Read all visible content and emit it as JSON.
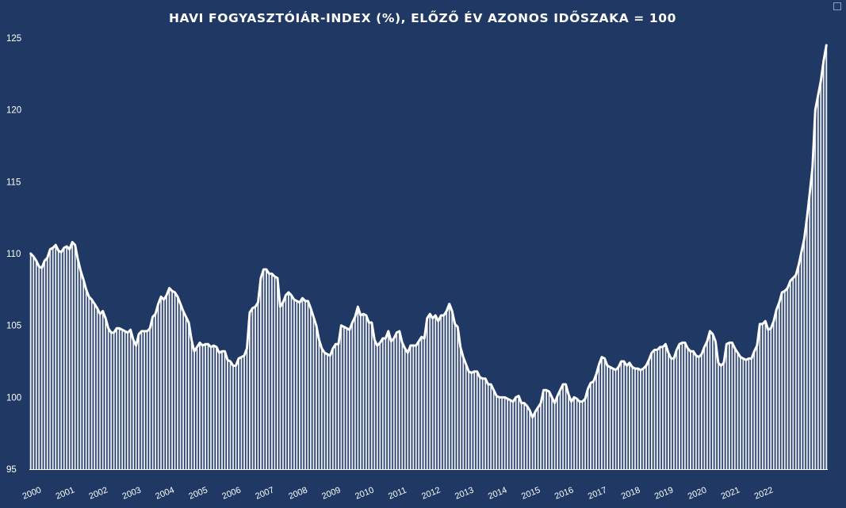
{
  "chart_data": {
    "type": "bar",
    "overlay": "line",
    "title": "HAVI FOGYASZTÓIÁR-INDEX  (%), ELŐZŐ ÉV AZONOS IDŐSZAKA = 100",
    "xlabel": "",
    "ylabel": "",
    "ylim": [
      95,
      125
    ],
    "yticks": [
      "95",
      "100",
      "105",
      "110",
      "115",
      "120",
      "125"
    ],
    "xtick_labels": [
      "2000",
      "2001",
      "2002",
      "2003",
      "2004",
      "2005",
      "2006",
      "2007",
      "2008",
      "2009",
      "2010",
      "2011",
      "2012",
      "2013",
      "2014",
      "2015",
      "2016",
      "2017",
      "2018",
      "2019",
      "2020",
      "2021",
      "2022"
    ],
    "x_start": "2000-01",
    "x_end": "2022-12",
    "grid": false,
    "legend": "none",
    "colors": {
      "background": "#203864",
      "series": "#ffffff",
      "text": "#ffffff"
    },
    "series": [
      {
        "values": [
          110.0,
          109.8,
          109.5,
          109.1,
          109.0,
          109.5,
          109.7,
          110.3,
          110.4,
          110.6,
          110.2,
          110.1,
          110.4,
          110.5,
          110.3,
          110.8,
          110.6,
          109.6,
          108.8,
          108.2,
          107.5,
          107.0,
          106.8,
          106.5,
          106.2,
          105.8,
          106.0,
          105.5,
          104.8,
          104.5,
          104.5,
          104.8,
          104.8,
          104.7,
          104.6,
          104.5,
          104.7,
          104.0,
          103.6,
          104.4,
          104.6,
          104.6,
          104.6,
          104.8,
          105.6,
          105.8,
          106.5,
          107.0,
          106.8,
          107.1,
          107.6,
          107.4,
          107.3,
          107.0,
          106.5,
          106.0,
          105.6,
          105.2,
          104.0,
          103.2,
          103.5,
          103.8,
          103.6,
          103.7,
          103.7,
          103.5,
          103.6,
          103.5,
          103.1,
          103.2,
          103.2,
          102.6,
          102.5,
          102.2,
          102.2,
          102.7,
          102.8,
          102.9,
          103.4,
          105.9,
          106.2,
          106.3,
          106.6,
          108.3,
          108.9,
          108.9,
          108.6,
          108.6,
          108.4,
          108.3,
          106.3,
          106.6,
          107.1,
          107.3,
          107.1,
          106.8,
          106.7,
          106.6,
          106.9,
          106.7,
          106.7,
          106.2,
          105.6,
          105.0,
          104.0,
          103.4,
          103.1,
          103.0,
          102.9,
          103.4,
          103.7,
          103.7,
          105.0,
          104.9,
          104.8,
          104.7,
          105.2,
          105.6,
          106.3,
          105.7,
          105.8,
          105.7,
          105.2,
          105.2,
          104.0,
          103.6,
          103.8,
          104.1,
          104.1,
          104.6,
          103.9,
          104.1,
          104.5,
          104.6,
          103.8,
          103.4,
          103.1,
          103.6,
          103.6,
          103.6,
          103.9,
          104.2,
          104.1,
          105.5,
          105.8,
          105.5,
          105.7,
          105.3,
          105.7,
          105.7,
          106.0,
          106.5,
          106.0,
          105.1,
          104.9,
          103.5,
          102.8,
          102.3,
          101.8,
          101.7,
          101.8,
          101.8,
          101.4,
          101.3,
          101.3,
          100.9,
          100.9,
          100.5,
          100.1,
          100.0,
          100.0,
          100.0,
          99.9,
          99.8,
          99.7,
          100.0,
          100.1,
          99.6,
          99.6,
          99.4,
          99.1,
          98.6,
          99.0,
          99.3,
          99.6,
          100.5,
          100.5,
          100.4,
          100.0,
          99.6,
          100.1,
          100.5,
          100.9,
          100.9,
          100.2,
          99.7,
          100.0,
          99.9,
          99.7,
          99.7,
          99.9,
          100.6,
          101.0,
          101.1,
          101.6,
          102.3,
          102.8,
          102.7,
          102.2,
          102.1,
          102.0,
          101.9,
          102.1,
          102.5,
          102.5,
          102.2,
          102.4,
          102.1,
          102.0,
          102.0,
          101.9,
          102.0,
          102.2,
          102.6,
          103.1,
          103.3,
          103.3,
          103.5,
          103.5,
          103.7,
          103.1,
          102.7,
          102.7,
          103.3,
          103.7,
          103.8,
          103.8,
          103.4,
          103.2,
          103.2,
          102.9,
          102.8,
          103.0,
          103.5,
          103.9,
          104.6,
          104.4,
          103.9,
          102.4,
          102.2,
          102.4,
          103.7,
          103.8,
          103.8,
          103.4,
          103.1,
          102.8,
          102.7,
          102.6,
          102.7,
          102.7,
          103.2,
          103.6,
          105.1,
          105.1,
          105.3,
          104.7,
          104.8,
          105.3,
          106.1,
          106.6,
          107.3,
          107.4,
          107.6,
          108.1,
          108.3,
          108.5,
          109.2,
          110.1,
          111.0,
          112.5,
          114.2,
          116.0,
          120.0,
          121.0,
          122.0,
          123.4,
          124.5
        ]
      }
    ]
  }
}
